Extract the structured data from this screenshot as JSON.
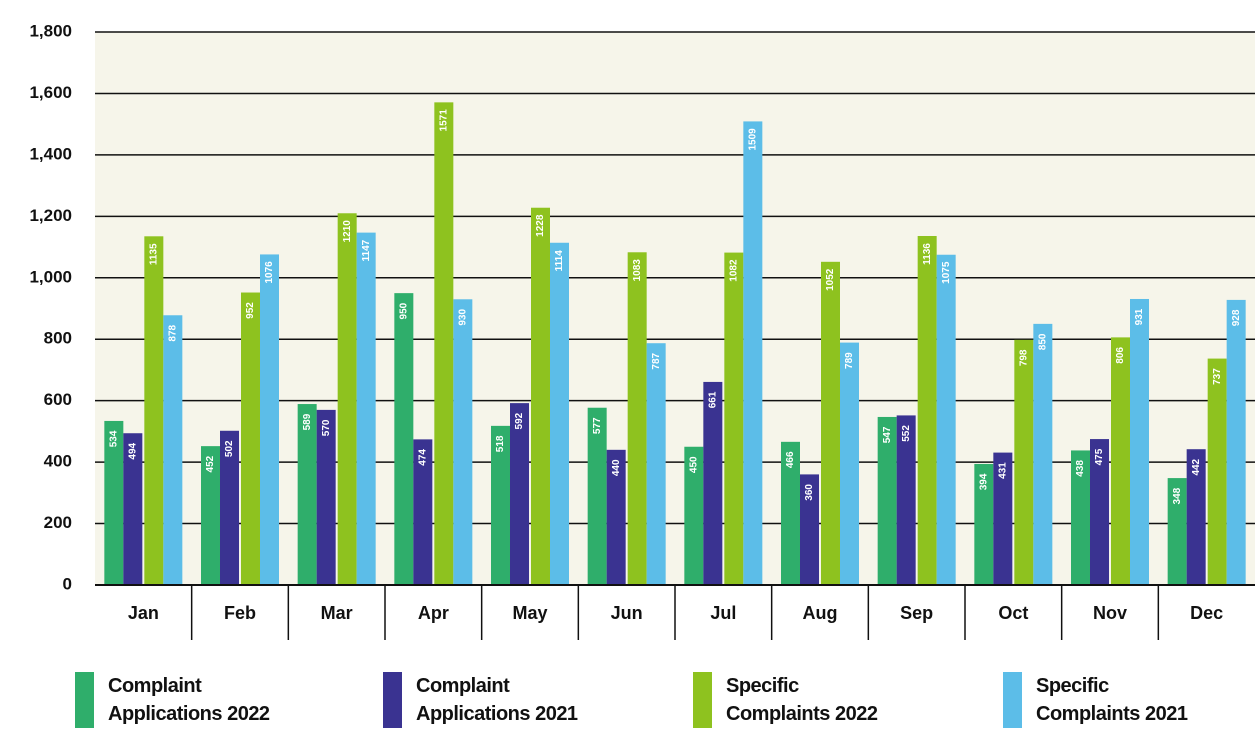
{
  "chart_data": {
    "type": "bar",
    "categories": [
      "Jan",
      "Feb",
      "Mar",
      "Apr",
      "May",
      "Jun",
      "Jul",
      "Aug",
      "Sep",
      "Oct",
      "Nov",
      "Dec"
    ],
    "series": [
      {
        "name": "Complaint Applications 2022",
        "color": "#2fae6b",
        "values": [
          534,
          452,
          589,
          950,
          518,
          577,
          450,
          466,
          547,
          394,
          438,
          348
        ]
      },
      {
        "name": "Complaint Applications 2021",
        "color": "#3a3391",
        "values": [
          494,
          502,
          570,
          474,
          592,
          440,
          661,
          360,
          552,
          431,
          475,
          442
        ]
      },
      {
        "name": "Specific Complaints 2022",
        "color": "#8ec21f",
        "values": [
          1135,
          952,
          1210,
          1571,
          1228,
          1083,
          1082,
          1052,
          1136,
          798,
          806,
          737
        ]
      },
      {
        "name": "Specific Complaints 2021",
        "color": "#5cbde8",
        "values": [
          878,
          1076,
          1147,
          930,
          1114,
          787,
          1509,
          789,
          1075,
          850,
          931,
          928
        ]
      }
    ],
    "ylim": [
      0,
      1800
    ],
    "yticks": [
      0,
      200,
      400,
      600,
      800,
      {
        "value": 1000,
        "label": "1,000"
      },
      {
        "value": 1200,
        "label": "1,200"
      },
      {
        "value": 1400,
        "label": "1,400"
      },
      {
        "value": 1600,
        "label": "1,600"
      },
      {
        "value": 1800,
        "label": "1,800"
      }
    ],
    "grid": true
  }
}
